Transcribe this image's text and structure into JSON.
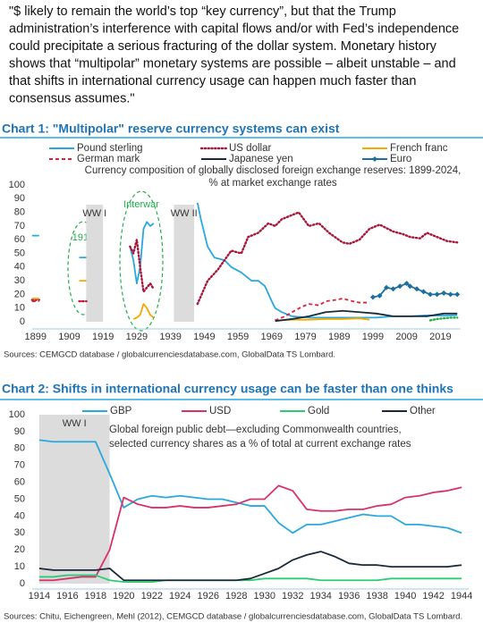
{
  "header": {
    "lines": [
      "\"$ likely to remain the world’s top “key currency”, but that the Trump",
      "administration’s interference with capital flows and/or with Fed’s independence",
      "could precipitate a serious fracturing of the dollar system. Monetary history",
      "shows that “multipolar” monetary systems are possible – albeit unstable – and",
      "that shifts in international currency usage can happen much faster than",
      "consensus assumes.\""
    ]
  },
  "chart_data": [
    {
      "type": "line",
      "title": "Chart 1: \"Multipolar\" reserve currency systems can exist",
      "subtitle": [
        "Currency composition of globally disclosed foreign exchange reserves: 1899-2024,",
        "% at market exchange rates"
      ],
      "source": "Sources: CEMGCD database / globalcurrenciesdatabase.com, GlobalData TS Lombard.",
      "annotations": [
        "1913",
        "Interwar"
      ],
      "shaded_periods": [
        {
          "label": "WW I",
          "start": 1914,
          "end": 1919
        },
        {
          "label": "WW II",
          "start": 1940,
          "end": 1946
        }
      ],
      "xlim": [
        1898,
        2025
      ],
      "xticks": [
        1899,
        1909,
        1919,
        1929,
        1939,
        1949,
        1959,
        1969,
        1979,
        1989,
        1999,
        2009,
        2019
      ],
      "ylim": [
        0,
        100
      ],
      "yticks": [
        0,
        10,
        20,
        30,
        40,
        50,
        60,
        70,
        80,
        90,
        100
      ],
      "grid": false,
      "series": [
        {
          "name": "Pound sterling",
          "color": "#29a8e0",
          "dash": "solid",
          "x": [
            1899,
            1905,
            1913,
            1920,
            1927,
            1928,
            1929,
            1930,
            1931,
            1932,
            1933,
            1934,
            1940,
            1947,
            1948,
            1950,
            1952,
            1955,
            1957,
            1960,
            1963,
            1965,
            1967,
            1969,
            1970,
            1972,
            1975,
            1980,
            1985,
            1990,
            1995,
            2000,
            2005,
            2010,
            2015,
            2020,
            2024
          ],
          "values": [
            63,
            null,
            47,
            null,
            55,
            45,
            28,
            40,
            68,
            73,
            70,
            72,
            null,
            87,
            75,
            55,
            47,
            45,
            40,
            36,
            30,
            30,
            26,
            15,
            10,
            7,
            4,
            3,
            3,
            3,
            3,
            3,
            4,
            4,
            4.7,
            4.5,
            4.8
          ]
        },
        {
          "name": "US dollar",
          "color": "#a8163a",
          "dash": "dotted",
          "x": [
            1899,
            1905,
            1913,
            1920,
            1927,
            1928,
            1929,
            1930,
            1931,
            1932,
            1933,
            1934,
            1940,
            1947,
            1950,
            1953,
            1955,
            1957,
            1960,
            1962,
            1965,
            1968,
            1970,
            1972,
            1975,
            1977,
            1980,
            1983,
            1986,
            1990,
            1992,
            1995,
            1998,
            2001,
            2005,
            2008,
            2010,
            2013,
            2015,
            2018,
            2021,
            2024
          ],
          "values": [
            16,
            null,
            15,
            null,
            55,
            50,
            60,
            40,
            22,
            25,
            28,
            24,
            null,
            13,
            30,
            38,
            45,
            52,
            50,
            62,
            65,
            72,
            70,
            75,
            78,
            80,
            70,
            72,
            65,
            58,
            57,
            60,
            68,
            71,
            66,
            64,
            62,
            61,
            65,
            62,
            59,
            58
          ]
        },
        {
          "name": "French franc",
          "color": "#f5a800",
          "dash": "solid",
          "x": [
            1899,
            1905,
            1913,
            1920,
            1928,
            1929,
            1930,
            1931,
            1932,
            1933,
            1934,
            1940,
            1970,
            1975,
            1980,
            1985,
            1990,
            1995,
            1998
          ],
          "values": [
            17,
            null,
            30,
            null,
            2,
            3,
            5,
            13,
            10,
            5,
            3,
            null,
            1,
            1.5,
            1.5,
            2,
            2,
            2.5,
            1.5
          ]
        },
        {
          "name": "German mark",
          "color": "#e0203a",
          "dash": "dashed",
          "x": [
            1899,
            1905,
            1913,
            1920,
            1970,
            1973,
            1975,
            1978,
            1980,
            1983,
            1985,
            1988,
            1990,
            1993,
            1995,
            1998
          ],
          "values": [
            15,
            null,
            15,
            null,
            1,
            4,
            7,
            11,
            13,
            12,
            15,
            16,
            17,
            15,
            14,
            14
          ]
        },
        {
          "name": "Japanese yen",
          "color": "#1a2a3a",
          "dash": "solid",
          "x": [
            1970,
            1975,
            1980,
            1985,
            1990,
            1995,
            2000,
            2005,
            2010,
            2015,
            2020,
            2024
          ],
          "values": [
            0.5,
            2,
            4,
            7,
            8,
            7,
            6,
            4,
            4,
            4,
            6,
            6
          ]
        },
        {
          "name": "Euro",
          "color": "#1e6e9e",
          "dash": "solid",
          "marker": "diamond",
          "x": [
            1999,
            2001,
            2003,
            2005,
            2007,
            2009,
            2010,
            2012,
            2014,
            2016,
            2018,
            2020,
            2022,
            2024
          ],
          "values": [
            18,
            19,
            25,
            24,
            26,
            28,
            26,
            24,
            22,
            20,
            20,
            21,
            20,
            20
          ]
        },
        {
          "color": "#22b04b",
          "dash": "dotted",
          "x": [
            2016,
            2018,
            2020,
            2022,
            2024
          ],
          "values": [
            1,
            2,
            2.5,
            3,
            3
          ]
        }
      ]
    },
    {
      "type": "line",
      "title": "Chart 2: Shifts in international currency usage can be faster than one thinks",
      "subtitle": [
        "Global foreign public debt—excluding Commonwealth countries,",
        "selected currency shares as a % of total at current exchange rates"
      ],
      "source": "Sources: Chitu, Eichengreen, Mehl (2012), CEMGCD database / globalcurrenciesdatabase.com, GlobalData TS Lombard.",
      "shaded_periods": [
        {
          "label": "WW I",
          "start": 1914,
          "end": 1919
        }
      ],
      "xlim": [
        1913.5,
        1944.5
      ],
      "xticks": [
        1914,
        1916,
        1918,
        1920,
        1922,
        1924,
        1926,
        1928,
        1930,
        1932,
        1934,
        1936,
        1938,
        1940,
        1942,
        1944
      ],
      "ylim": [
        0,
        100
      ],
      "yticks": [
        0,
        10,
        20,
        30,
        40,
        50,
        60,
        70,
        80,
        90,
        100
      ],
      "grid": false,
      "x": [
        1914,
        1915,
        1916,
        1917,
        1918,
        1919,
        1920,
        1921,
        1922,
        1923,
        1924,
        1925,
        1926,
        1927,
        1928,
        1929,
        1930,
        1931,
        1932,
        1933,
        1934,
        1935,
        1936,
        1937,
        1938,
        1939,
        1940,
        1941,
        1942,
        1943,
        1944
      ],
      "series": [
        {
          "name": "GBP",
          "color": "#29a8e0",
          "values": [
            85,
            84,
            84,
            84,
            84,
            65,
            45,
            50,
            52,
            51,
            52,
            51,
            50,
            50,
            48,
            46,
            46,
            36,
            30,
            35,
            35,
            37,
            39,
            41,
            40,
            40,
            35,
            35,
            34,
            33,
            30
          ]
        },
        {
          "name": "USD",
          "color": "#d6336c",
          "values": [
            2,
            2,
            3,
            4,
            4,
            20,
            51,
            47,
            45,
            45,
            46,
            45,
            45,
            46,
            47,
            50,
            50,
            58,
            55,
            44,
            43,
            43,
            44,
            44,
            46,
            47,
            51,
            52,
            54,
            55,
            57
          ]
        },
        {
          "name": "Gold",
          "color": "#2ecc71",
          "values": [
            4,
            4,
            5,
            5,
            5,
            2,
            1,
            1,
            1,
            2,
            2,
            2,
            2,
            2,
            2,
            2,
            3,
            3,
            3,
            3,
            2,
            2,
            2,
            2,
            2,
            3,
            3,
            3,
            3,
            3,
            3
          ]
        },
        {
          "name": "Other",
          "color": "#1a2a3a",
          "values": [
            9,
            8,
            8,
            8,
            8,
            9,
            2,
            2,
            2,
            2,
            2,
            2,
            2,
            2,
            2,
            3,
            6,
            9,
            14,
            17,
            19,
            16,
            12,
            11,
            11,
            10,
            10,
            10,
            10,
            10,
            11
          ]
        }
      ]
    }
  ]
}
